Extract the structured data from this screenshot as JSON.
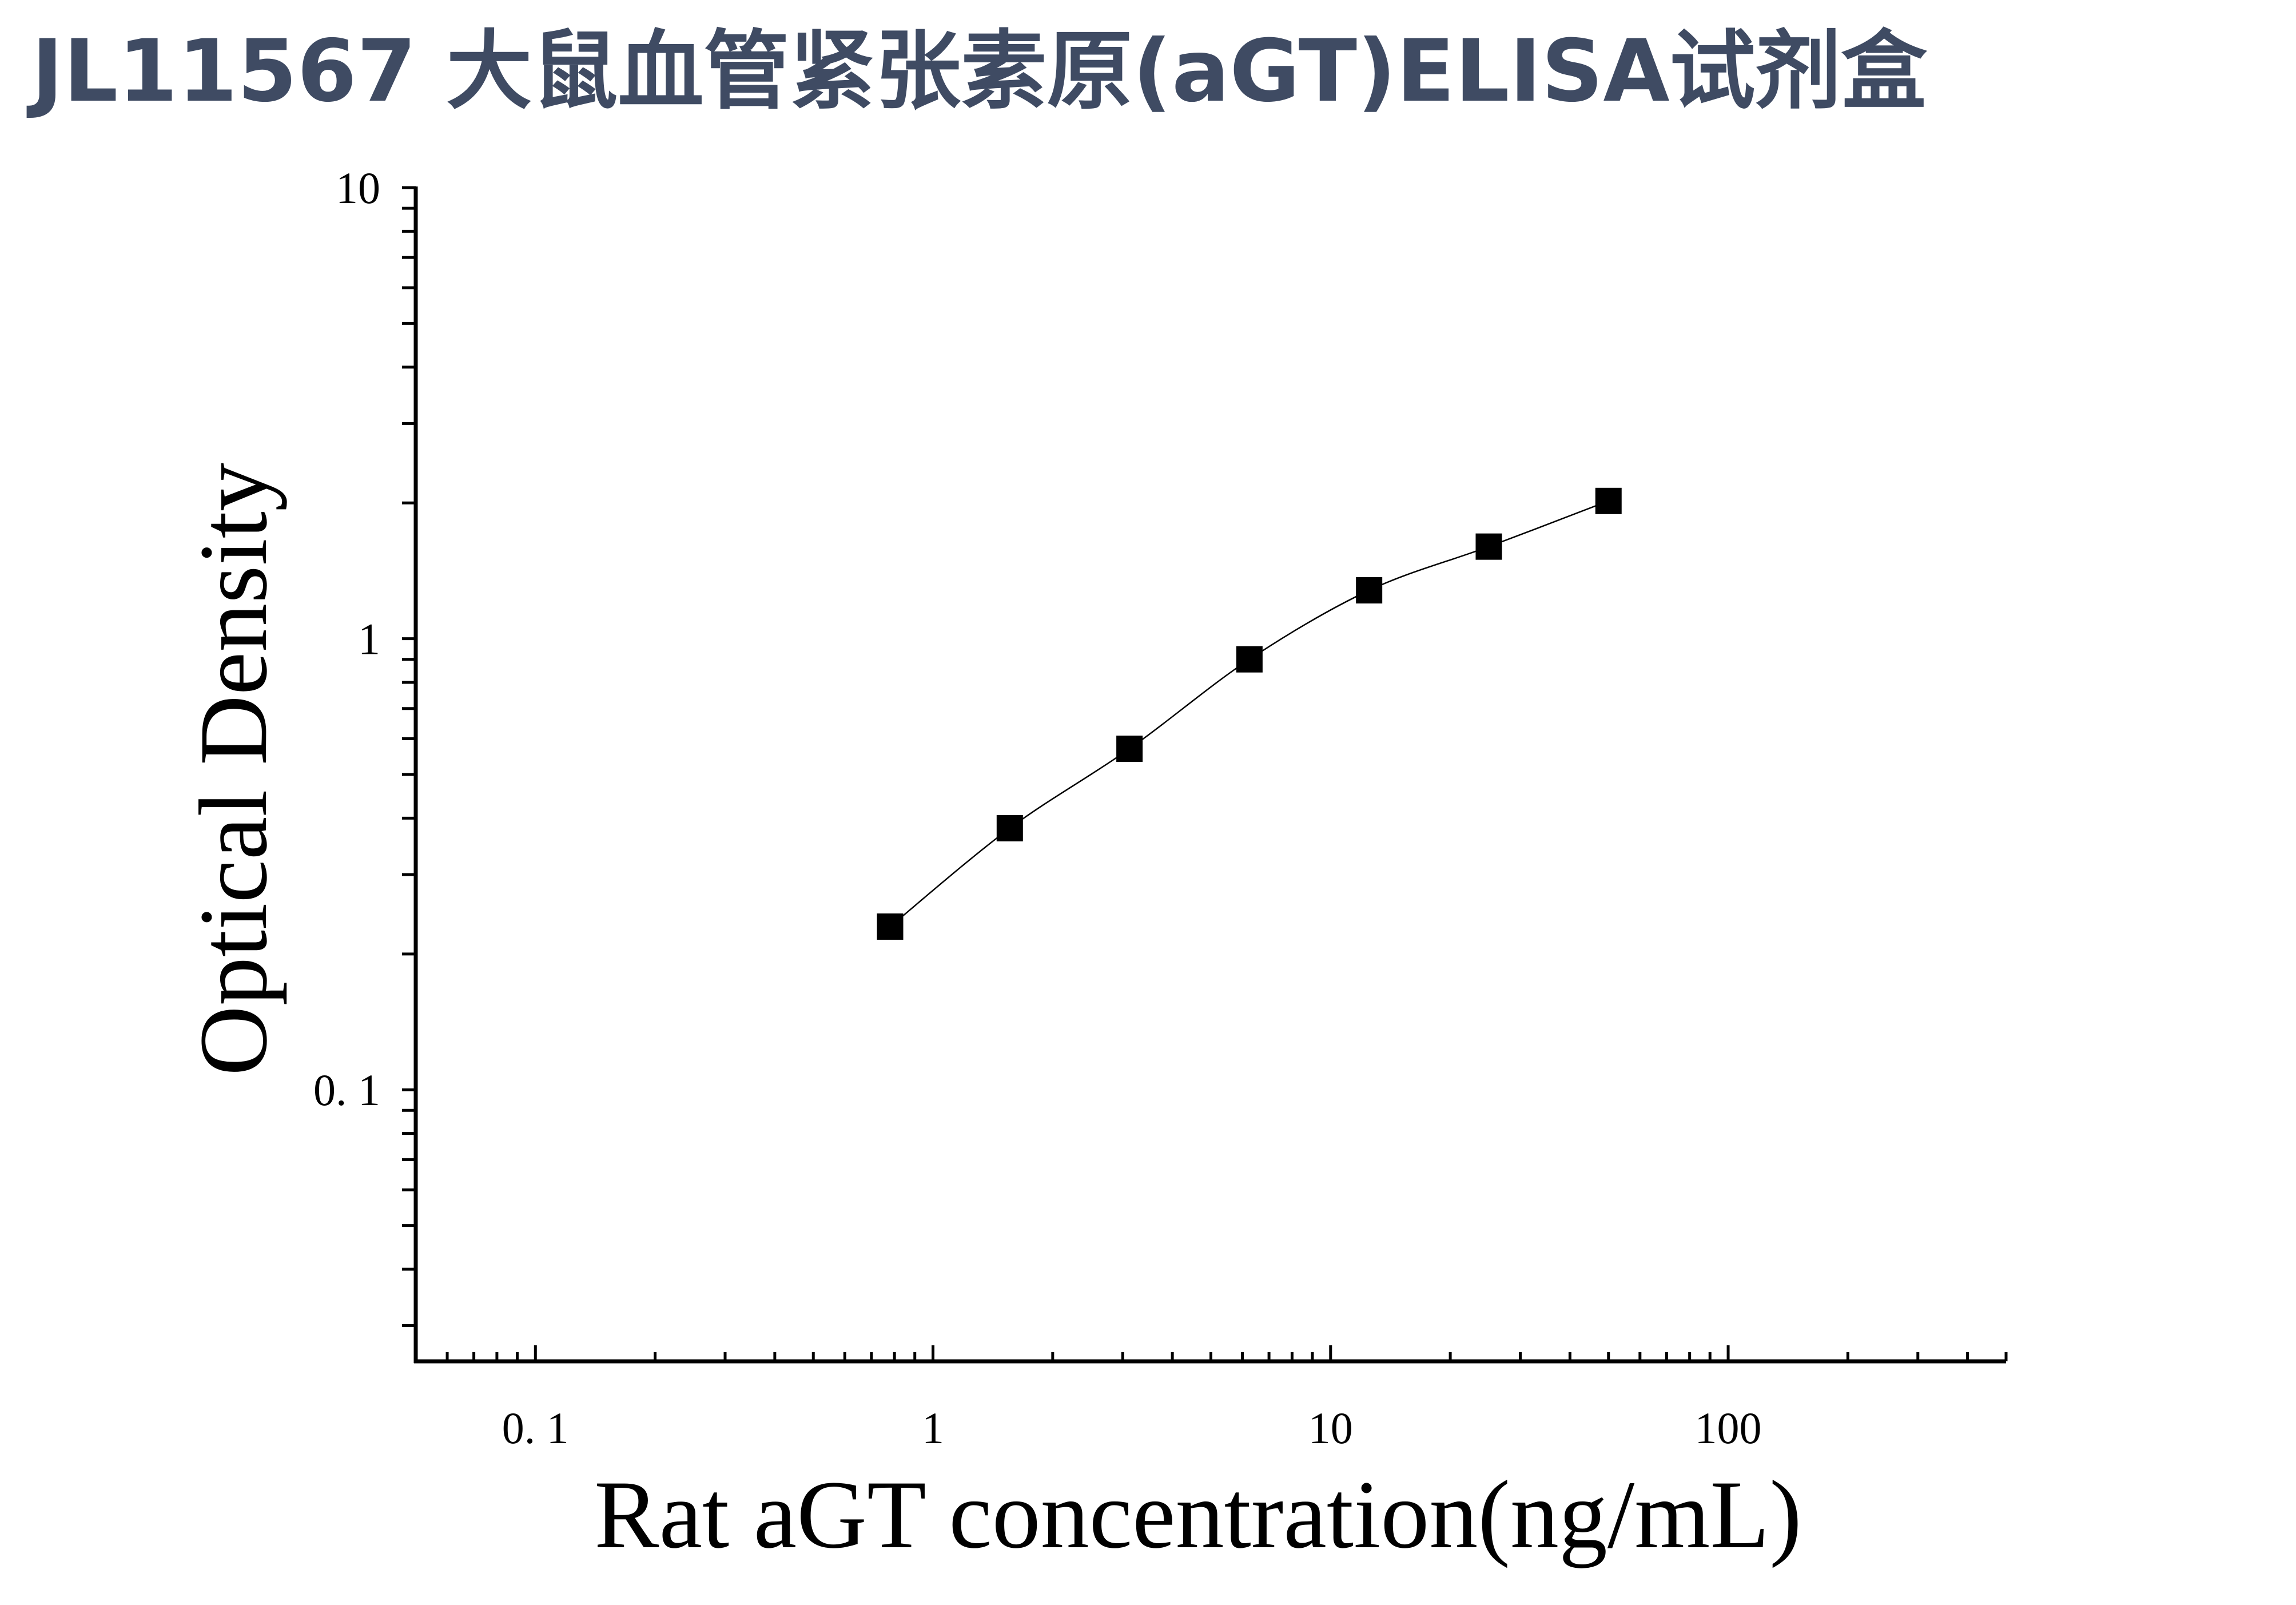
{
  "page": {
    "title": "JL11567 大鼠血管紧张素原(aGT)ELISA试剂盒"
  },
  "chart_data": {
    "type": "scatter",
    "xlabel": "Rat aGT concentration(ng/mL)",
    "ylabel": "Optical Density",
    "xscale": "log",
    "yscale": "log",
    "xlim": [
      0.05,
      500
    ],
    "ylim": [
      0.025,
      10
    ],
    "xticks": [
      0.1,
      1,
      10,
      100
    ],
    "xtick_labels": [
      "0. 1",
      "1",
      "10",
      "100"
    ],
    "yticks": [
      0.1,
      1,
      10
    ],
    "ytick_labels": [
      "0. 1",
      "1",
      "10"
    ],
    "grid": false,
    "series": [
      {
        "marker": "square",
        "color": "#000000",
        "fit_line": true,
        "x": [
          0.78,
          1.56,
          3.12,
          6.25,
          12.5,
          25,
          50
        ],
        "y": [
          0.23,
          0.38,
          0.57,
          0.9,
          1.28,
          1.6,
          2.02
        ]
      }
    ]
  }
}
